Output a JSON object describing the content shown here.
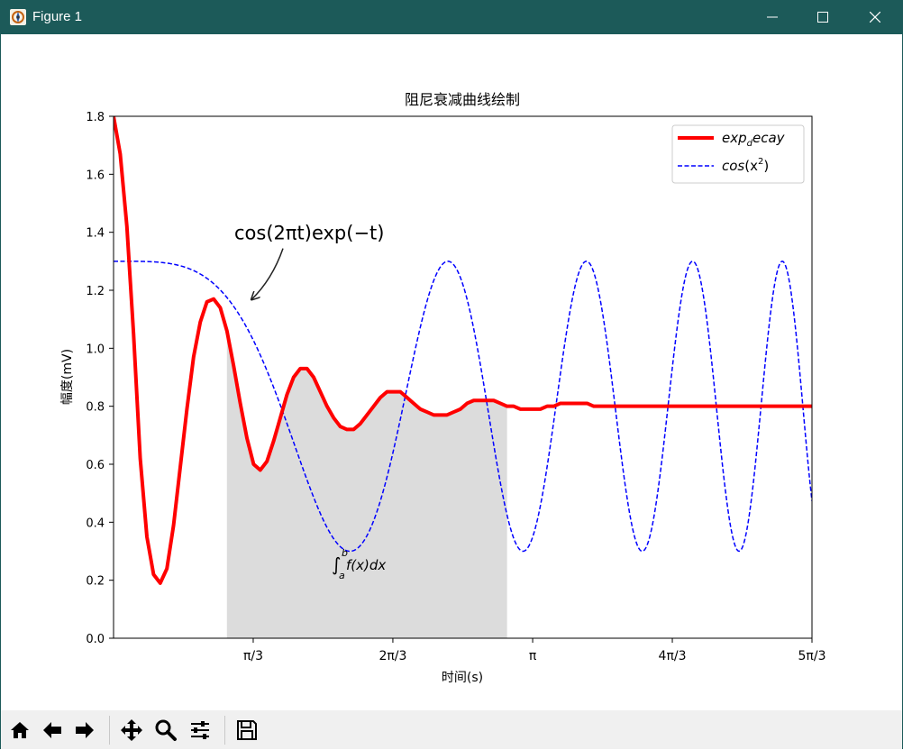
{
  "window": {
    "title": "Figure 1"
  },
  "toolbar": {
    "buttons": [
      {
        "name": "home-button",
        "icon": "home-icon"
      },
      {
        "name": "back-button",
        "icon": "arrow-left-icon"
      },
      {
        "name": "forward-button",
        "icon": "arrow-right-icon"
      },
      {
        "name": "pan-button",
        "icon": "move-icon"
      },
      {
        "name": "zoom-button",
        "icon": "magnifier-icon"
      },
      {
        "name": "configure-subplots-button",
        "icon": "sliders-icon"
      },
      {
        "name": "save-button",
        "icon": "floppy-disk-icon"
      }
    ]
  },
  "chart_data": {
    "type": "line",
    "title": "阻尼衰减曲线绘制",
    "xlabel": "时间(s)",
    "ylabel": "幅度(mV)",
    "xlim": [
      0,
      5.236
    ],
    "ylim": [
      0,
      1.8
    ],
    "x_tick_labels": [
      "π/3",
      "2π/3",
      "π",
      "4π/3",
      "5π/3"
    ],
    "x_tick_values": [
      1.047,
      2.094,
      3.142,
      4.189,
      5.236
    ],
    "y_tick_labels": [
      "0.0",
      "0.2",
      "0.4",
      "0.6",
      "0.8",
      "1.0",
      "1.2",
      "1.4",
      "1.6",
      "1.8"
    ],
    "y_tick_values": [
      0.0,
      0.2,
      0.4,
      0.6,
      0.8,
      1.0,
      1.2,
      1.4,
      1.6,
      1.8
    ],
    "grid": false,
    "legend_position": "top-right",
    "legend": [
      {
        "label": "exp_decay",
        "label_main": "exp",
        "label_sub": "d",
        "label_rest": "ecay",
        "color": "#ff0000",
        "style": "solid"
      },
      {
        "label": "cos(x²)",
        "label_main": "cos",
        "label_paren_open": "(x",
        "label_sup": "2",
        "label_paren_close": ")",
        "color": "#0000ff",
        "style": "dashed"
      }
    ],
    "series": [
      {
        "name": "exp_decay",
        "color": "#ff0000",
        "style": "solid",
        "x": [
          0,
          0.05,
          0.1,
          0.15,
          0.2,
          0.25,
          0.3,
          0.35,
          0.4,
          0.45,
          0.5,
          0.55,
          0.6,
          0.65,
          0.7,
          0.75,
          0.8,
          0.85,
          0.9,
          0.95,
          1.0,
          1.05,
          1.1,
          1.15,
          1.2,
          1.25,
          1.3,
          1.35,
          1.4,
          1.45,
          1.5,
          1.55,
          1.6,
          1.65,
          1.7,
          1.75,
          1.8,
          1.85,
          1.9,
          1.95,
          2.0,
          2.05,
          2.1,
          2.15,
          2.2,
          2.25,
          2.3,
          2.35,
          2.4,
          2.45,
          2.5,
          2.55,
          2.6,
          2.65,
          2.7,
          2.75,
          2.8,
          2.85,
          2.9,
          2.95,
          3.0,
          3.05,
          3.1,
          3.15,
          3.2,
          3.25,
          3.3,
          3.35,
          3.4,
          3.45,
          3.5,
          3.55,
          3.6,
          3.65,
          3.7,
          3.75,
          3.8,
          3.85,
          3.9,
          3.95,
          4.0,
          4.05,
          4.1,
          4.15,
          4.2,
          4.25,
          4.3,
          4.35,
          4.4,
          4.45,
          4.5,
          4.55,
          4.6,
          4.65,
          4.7,
          4.75,
          4.8,
          4.85,
          4.9,
          4.95,
          5.0,
          5.05,
          5.1,
          5.15,
          5.2,
          5.236
        ],
        "y": [
          1.8,
          1.67,
          1.42,
          1.05,
          0.62,
          0.35,
          0.22,
          0.19,
          0.24,
          0.39,
          0.59,
          0.79,
          0.97,
          1.09,
          1.16,
          1.17,
          1.14,
          1.06,
          0.94,
          0.81,
          0.69,
          0.6,
          0.58,
          0.61,
          0.68,
          0.76,
          0.84,
          0.9,
          0.93,
          0.93,
          0.9,
          0.85,
          0.8,
          0.76,
          0.73,
          0.72,
          0.72,
          0.74,
          0.77,
          0.8,
          0.83,
          0.85,
          0.85,
          0.85,
          0.83,
          0.81,
          0.79,
          0.78,
          0.77,
          0.77,
          0.77,
          0.78,
          0.79,
          0.81,
          0.82,
          0.82,
          0.82,
          0.82,
          0.81,
          0.8,
          0.8,
          0.79,
          0.79,
          0.79,
          0.79,
          0.8,
          0.8,
          0.81,
          0.81,
          0.81,
          0.81,
          0.81,
          0.8,
          0.8,
          0.8,
          0.8,
          0.8,
          0.8,
          0.8,
          0.8,
          0.8,
          0.8,
          0.8,
          0.8,
          0.8,
          0.8,
          0.8,
          0.8,
          0.8,
          0.8,
          0.8,
          0.8,
          0.8,
          0.8,
          0.8,
          0.8,
          0.8,
          0.8,
          0.8,
          0.8,
          0.8,
          0.8,
          0.8,
          0.8,
          0.8,
          0.8
        ]
      },
      {
        "name": "cos(x²)",
        "color": "#0000ff",
        "style": "dashed",
        "formula": "0.8 + 0.5*cos(x^2)"
      }
    ],
    "fill": {
      "x_from": 0.85,
      "x_to": 2.95,
      "color": "#dcdcdc",
      "under_series": "exp_decay"
    },
    "annotations": [
      {
        "text": "cos(2πt)exp(−t)",
        "x": 1.0,
        "y": 1.4,
        "arrow_to_x": 1.02,
        "arrow_to_y": 1.18
      },
      {
        "text": "∫ₐᵇ f(x)dx",
        "x": 1.75,
        "y": 0.22,
        "int_symbol": "∫",
        "int_lower": "a",
        "int_upper": "b",
        "int_body": "f(x)dx"
      }
    ]
  }
}
